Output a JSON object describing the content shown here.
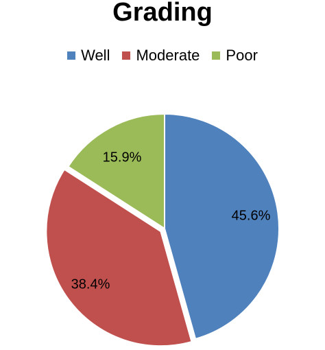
{
  "chart_data": {
    "type": "pie",
    "title": "Grading",
    "legend_position": "top",
    "categories": [
      "Well",
      "Moderate",
      "Poor"
    ],
    "values": [
      45.6,
      38.4,
      15.9
    ],
    "data_labels": [
      "45.6%",
      "38.4%",
      "15.9%"
    ],
    "colors": [
      "#4f81bd",
      "#c0504d",
      "#9bbb59"
    ],
    "exploded": [
      "Moderate"
    ]
  }
}
